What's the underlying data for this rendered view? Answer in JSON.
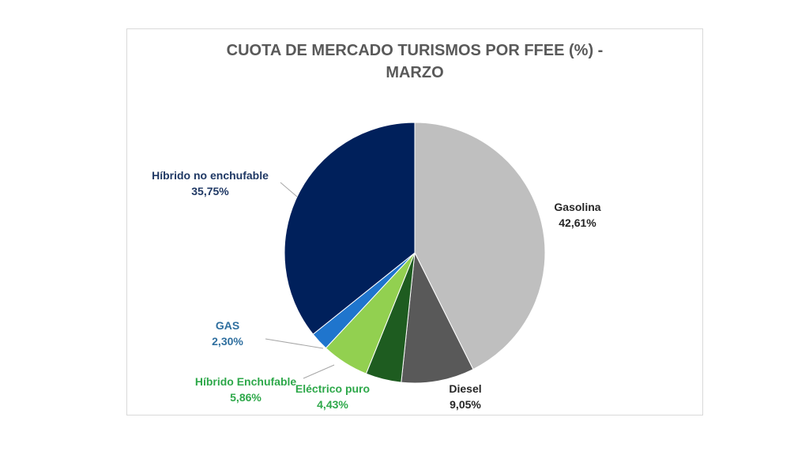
{
  "chart_data": {
    "type": "pie",
    "title": [
      "CUOTA DE MERCADO TURISMOS POR FFEE (%)  -",
      "MARZO"
    ],
    "slices": [
      {
        "name": "Gasolina",
        "value": 42.61,
        "label": "42,61%",
        "color": "#bfbfbf",
        "label_color": "#262626"
      },
      {
        "name": "Diesel",
        "value": 9.05,
        "label": "9,05%",
        "color": "#595959",
        "label_color": "#262626"
      },
      {
        "name": "Eléctrico puro",
        "value": 4.43,
        "label": "4,43%",
        "color": "#1e5c20",
        "label_color": "#2ea84a"
      },
      {
        "name": "Híbrido Enchufable",
        "value": 5.86,
        "label": "5,86%",
        "color": "#92d050",
        "label_color": "#2ea84a"
      },
      {
        "name": "GAS",
        "value": 2.3,
        "label": "2,30%",
        "color": "#1f75cd",
        "label_color": "#2f6f9f"
      },
      {
        "name": "Híbrido no enchufable",
        "value": 35.75,
        "label": "35,75%",
        "color": "#00205b",
        "label_color": "#1f3864"
      }
    ]
  }
}
